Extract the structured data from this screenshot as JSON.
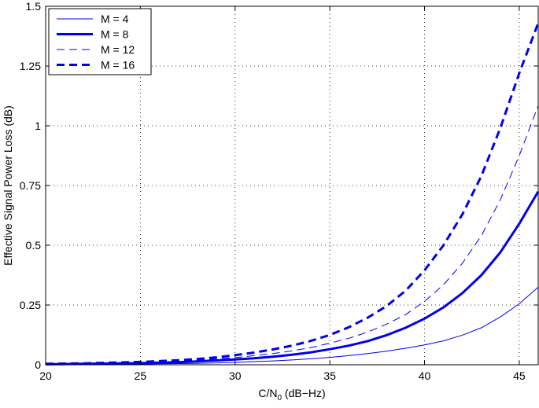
{
  "chart_data": {
    "type": "line",
    "xlabel_main": "C/N",
    "xlabel_sub": "0",
    "xlabel_rest": " (dB−Hz)",
    "ylabel": "Effective Signal Power Loss (dB)",
    "xlim": [
      20,
      46
    ],
    "ylim": [
      0,
      1.5
    ],
    "xticks": [
      20,
      25,
      30,
      35,
      40,
      45
    ],
    "xtick_labels": [
      "20",
      "25",
      "30",
      "35",
      "40",
      "45"
    ],
    "yticks": [
      0,
      0.25,
      0.5,
      0.75,
      1,
      1.25,
      1.5
    ],
    "ytick_labels": [
      "0",
      "0.25",
      "0.5",
      "0.75",
      "1",
      "1.25",
      "1.5"
    ],
    "grid": true,
    "legend_position": "top-left",
    "color": "#0000ee",
    "x": [
      20,
      21,
      22,
      23,
      24,
      25,
      26,
      27,
      28,
      29,
      30,
      31,
      32,
      33,
      34,
      35,
      36,
      37,
      38,
      39,
      40,
      41,
      42,
      43,
      44,
      45,
      46
    ],
    "series": [
      {
        "name": "M = 4",
        "style": "solid-thin",
        "values": [
          0.0,
          0.001,
          0.001,
          0.002,
          0.002,
          0.003,
          0.004,
          0.005,
          0.006,
          0.008,
          0.01,
          0.013,
          0.016,
          0.02,
          0.025,
          0.031,
          0.038,
          0.047,
          0.057,
          0.069,
          0.083,
          0.1,
          0.124,
          0.155,
          0.2,
          0.255,
          0.325
        ]
      },
      {
        "name": "M = 8",
        "style": "solid-thick",
        "values": [
          0.002,
          0.003,
          0.004,
          0.005,
          0.006,
          0.007,
          0.009,
          0.011,
          0.014,
          0.018,
          0.022,
          0.027,
          0.034,
          0.042,
          0.052,
          0.065,
          0.08,
          0.099,
          0.124,
          0.155,
          0.193,
          0.24,
          0.3,
          0.375,
          0.47,
          0.59,
          0.725
        ]
      },
      {
        "name": "M = 12",
        "style": "dashed-thin",
        "values": [
          0.003,
          0.004,
          0.005,
          0.006,
          0.008,
          0.01,
          0.012,
          0.015,
          0.019,
          0.024,
          0.03,
          0.038,
          0.047,
          0.058,
          0.072,
          0.09,
          0.111,
          0.137,
          0.17,
          0.21,
          0.265,
          0.335,
          0.425,
          0.54,
          0.69,
          0.875,
          1.085
        ]
      },
      {
        "name": "M = 16",
        "style": "dashed-thick",
        "values": [
          0.004,
          0.005,
          0.006,
          0.008,
          0.01,
          0.012,
          0.015,
          0.019,
          0.024,
          0.031,
          0.04,
          0.051,
          0.064,
          0.08,
          0.1,
          0.125,
          0.157,
          0.197,
          0.246,
          0.31,
          0.395,
          0.5,
          0.63,
          0.79,
          0.99,
          1.22,
          1.43
        ]
      }
    ]
  }
}
